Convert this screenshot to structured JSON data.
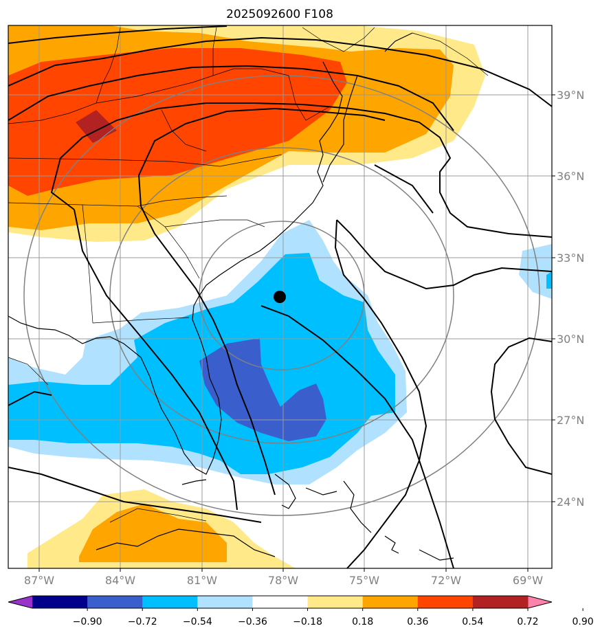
{
  "title": "2025092600 F108",
  "map": {
    "lat_ticks": [
      "39°N",
      "36°N",
      "33°N",
      "30°N",
      "27°N",
      "24°N"
    ],
    "lon_ticks": [
      "87°W",
      "84°W",
      "81°W",
      "78°W",
      "75°W",
      "72°W",
      "69°W"
    ],
    "center_marker": {
      "lon": -78,
      "lat": 31.5
    },
    "gridlines": true
  },
  "colorbar": {
    "ticks": [
      "−0.90",
      "−0.72",
      "−0.54",
      "−0.36",
      "−0.18",
      "0.18",
      "0.36",
      "0.54",
      "0.72",
      "0.90"
    ],
    "colors": [
      "#9932cc",
      "#00008b",
      "#3a5fcd",
      "#00bfff",
      "#b0e2ff",
      "#ffffff",
      "#ffe989",
      "#ffa500",
      "#ff4500",
      "#b22222",
      "#ff82ab"
    ]
  },
  "colors": {
    "strong_negative": "#3a5fcd",
    "negative": "#00bfff",
    "weak_negative": "#b0e2ff",
    "weak_positive": "#ffe989",
    "positive": "#ffa500",
    "strong_positive": "#ff4500",
    "very_strong_positive": "#b22222",
    "grid": "#808080"
  }
}
